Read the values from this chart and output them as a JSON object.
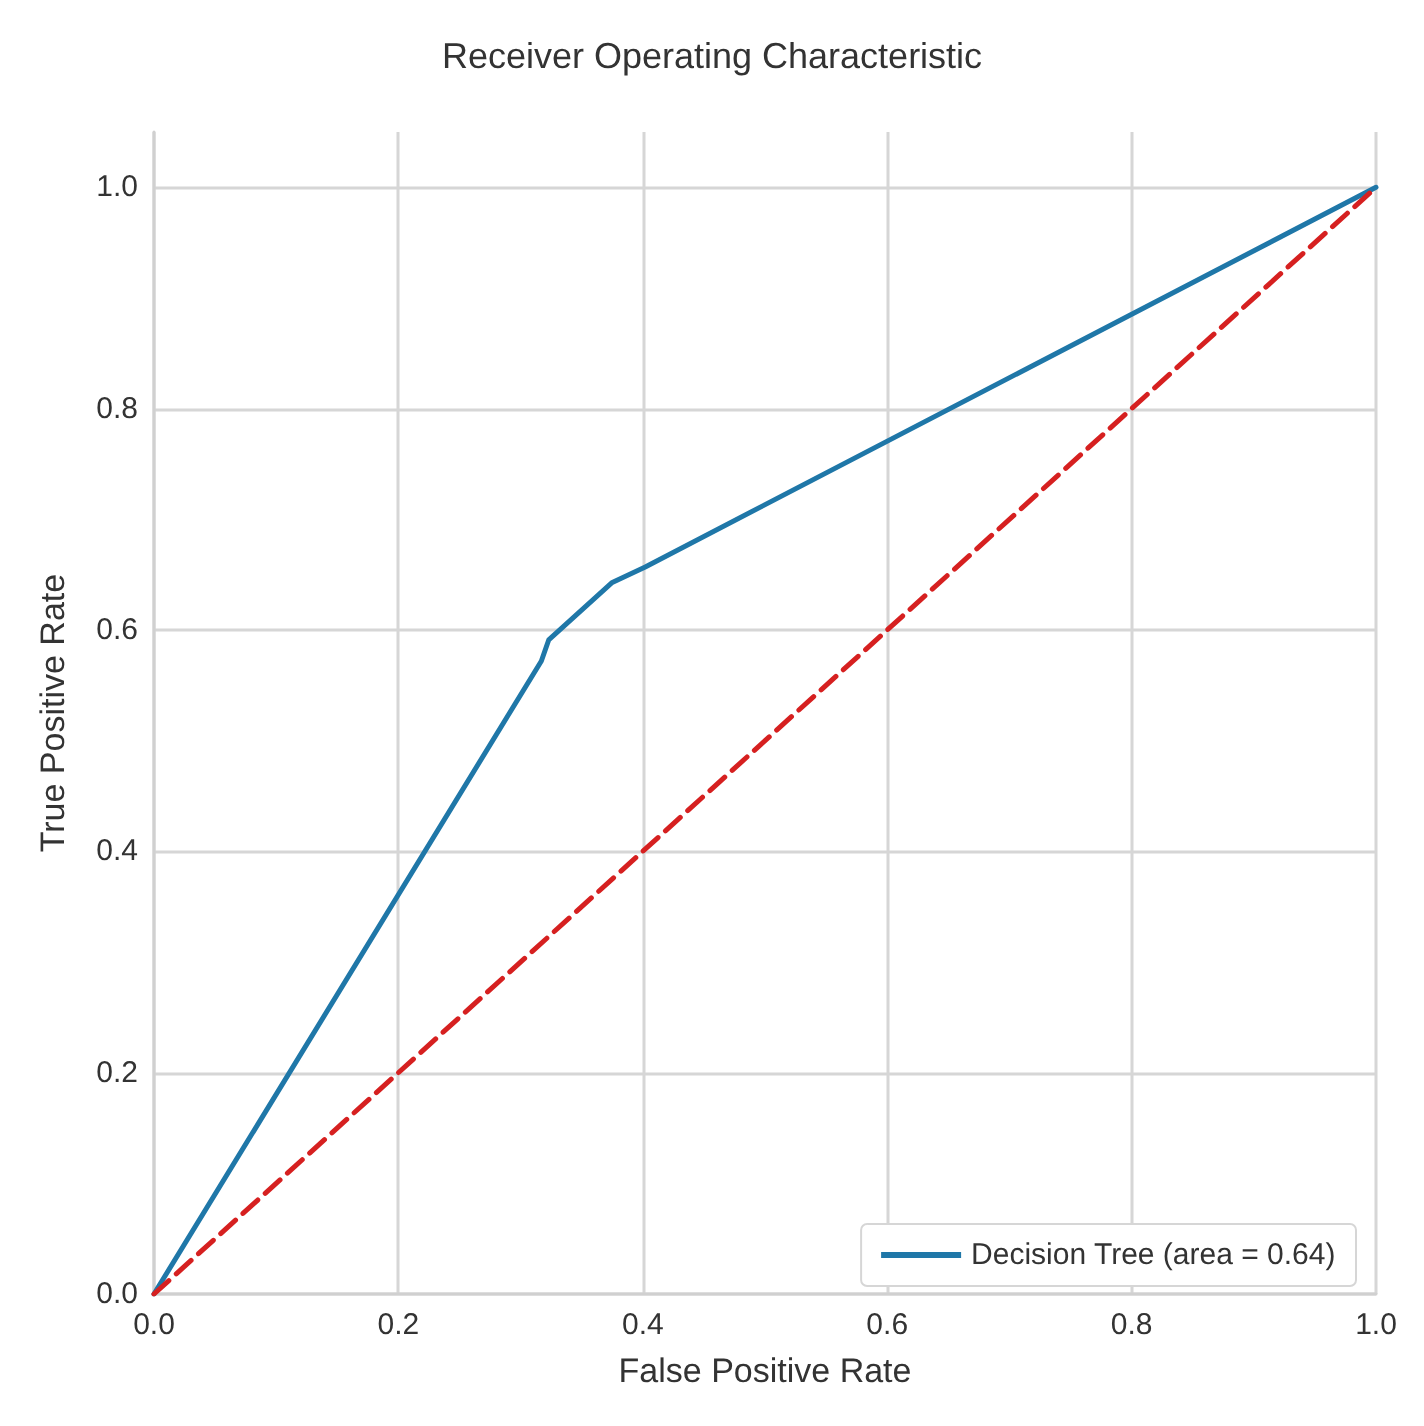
{
  "chart_data": {
    "type": "line",
    "title": "Receiver Operating Characteristic",
    "xlabel": "False Positive Rate",
    "ylabel": "True Positive Rate",
    "series": [
      {
        "name": "Decision Tree (area = 0.64)",
        "color": "#1f77a8",
        "x": [
          0,
          0.317,
          0.323,
          0.375,
          0.402,
          1
        ],
        "values": [
          0,
          0.572,
          0.591,
          0.643,
          0.657,
          1
        ],
        "line_style": "solid"
      },
      {
        "color": "#d62020",
        "x": [
          0,
          1
        ],
        "values": [
          0,
          1
        ],
        "line_style": "dashed"
      }
    ],
    "xlim": [
      0,
      1
    ],
    "ylim": [
      0,
      1.05
    ],
    "xticks": [
      {
        "value": 0,
        "label": "0.0"
      },
      {
        "value": 0.2,
        "label": "0.2"
      },
      {
        "value": 0.4,
        "label": "0.4"
      },
      {
        "value": 0.6,
        "label": "0.6"
      },
      {
        "value": 0.8,
        "label": "0.8"
      },
      {
        "value": 1,
        "label": "1.0"
      }
    ],
    "yticks": [
      {
        "value": 0,
        "label": "0.0"
      },
      {
        "value": 0.2,
        "label": "0.2"
      },
      {
        "value": 0.4,
        "label": "0.4"
      },
      {
        "value": 0.6,
        "label": "0.6"
      },
      {
        "value": 0.8,
        "label": "0.8"
      },
      {
        "value": 1,
        "label": "1.0"
      }
    ],
    "grid": true,
    "legend": "bottom right",
    "marker": "none"
  }
}
